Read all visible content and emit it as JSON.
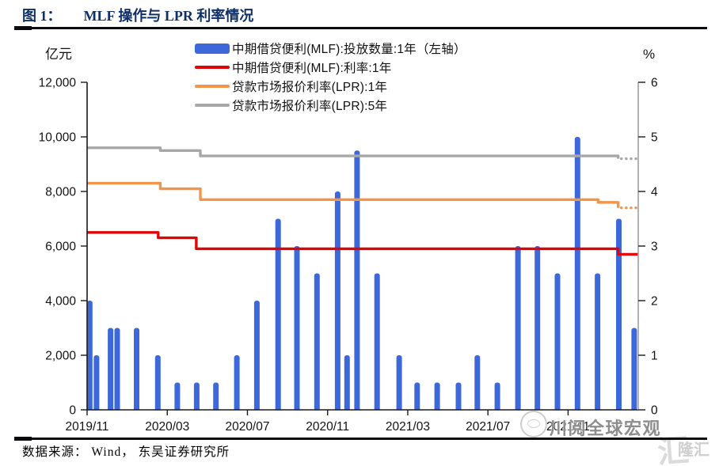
{
  "header": {
    "figure_label": "图 1：",
    "title": "MLF 操作与 LPR 利率情况"
  },
  "footer": {
    "source": "数据来源： Wind， 东吴证券研究所"
  },
  "watermark": {
    "logo": "speech-bubble-logo",
    "main_text": "川阅全球宏观",
    "corner_char": "汇",
    "corner_text": "隆汇"
  },
  "chart_data": {
    "type": "bar+line combo (dual axis)",
    "left_axis": {
      "label": "亿元",
      "min": 0,
      "max": 12000,
      "tick_step": 2000,
      "tick_labels": [
        "0",
        "2,000",
        "4,000",
        "6,000",
        "8,000",
        "10,000",
        "12,000"
      ]
    },
    "right_axis": {
      "label": "%",
      "min": 0,
      "max": 6,
      "tick_step": 1,
      "tick_labels": [
        "0",
        "1",
        "2",
        "3",
        "4",
        "5",
        "6"
      ]
    },
    "x_axis": {
      "domain_start": "2019/11",
      "domain_end": "2022/02",
      "domain_months": 27.5,
      "tick_month_positions": [
        0,
        4,
        8,
        12,
        16,
        20,
        24
      ],
      "tick_labels": [
        "2019/11",
        "2020/03",
        "2020/07",
        "2020/11",
        "2021/03",
        "2021/07",
        "2021/11"
      ]
    },
    "legend": [
      {
        "label": "中期借贷便利(MLF):投放数量:1年（左轴）",
        "color": "#3c68da",
        "type": "bar"
      },
      {
        "label": "中期借贷便利(MLF):利率:1年",
        "color": "#e00505",
        "type": "line"
      },
      {
        "label": "贷款市场报价利率(LPR):1年",
        "color": "#f2944a",
        "type": "line"
      },
      {
        "label": "贷款市场报价利率(LPR):5年",
        "color": "#a7a7a7",
        "type": "line"
      }
    ],
    "bars": {
      "name": "中期借贷便利(MLF):投放数量:1年（左轴）",
      "unit": "亿元",
      "color": "#3c68da",
      "points": [
        {
          "date": "2019/11/05",
          "m": 0.13,
          "value": 4000
        },
        {
          "date": "2019/11/15",
          "m": 0.47,
          "value": 2000
        },
        {
          "date": "2019/12/06",
          "m": 1.17,
          "value": 3000
        },
        {
          "date": "2019/12/16",
          "m": 1.5,
          "value": 3000
        },
        {
          "date": "2020/01/15",
          "m": 2.47,
          "value": 3000
        },
        {
          "date": "2020/02/17",
          "m": 3.53,
          "value": 2000
        },
        {
          "date": "2020/03/16",
          "m": 4.5,
          "value": 1000
        },
        {
          "date": "2020/04/15",
          "m": 5.47,
          "value": 1000
        },
        {
          "date": "2020/05/14",
          "m": 6.43,
          "value": 1000
        },
        {
          "date": "2020/06/15",
          "m": 7.47,
          "value": 2000
        },
        {
          "date": "2020/07/15",
          "m": 8.47,
          "value": 4000
        },
        {
          "date": "2020/08/17",
          "m": 9.53,
          "value": 7000
        },
        {
          "date": "2020/09/15",
          "m": 10.47,
          "value": 6000
        },
        {
          "date": "2020/10/15",
          "m": 11.47,
          "value": 5000
        },
        {
          "date": "2020/11/16",
          "m": 12.5,
          "value": 8000
        },
        {
          "date": "2020/11/30",
          "m": 12.97,
          "value": 2000
        },
        {
          "date": "2020/12/15",
          "m": 13.47,
          "value": 9500
        },
        {
          "date": "2021/01/15",
          "m": 14.47,
          "value": 5000
        },
        {
          "date": "2021/02/18",
          "m": 15.57,
          "value": 2000
        },
        {
          "date": "2021/03/15",
          "m": 16.47,
          "value": 1000
        },
        {
          "date": "2021/04/15",
          "m": 17.47,
          "value": 1000
        },
        {
          "date": "2021/05/17",
          "m": 18.53,
          "value": 1000
        },
        {
          "date": "2021/06/15",
          "m": 19.47,
          "value": 2000
        },
        {
          "date": "2021/07/15",
          "m": 20.47,
          "value": 1000
        },
        {
          "date": "2021/08/16",
          "m": 21.5,
          "value": 6000
        },
        {
          "date": "2021/09/15",
          "m": 22.47,
          "value": 6000
        },
        {
          "date": "2021/10/15",
          "m": 23.47,
          "value": 5000
        },
        {
          "date": "2021/11/15",
          "m": 24.47,
          "value": 10000
        },
        {
          "date": "2021/12/15",
          "m": 25.47,
          "value": 5000
        },
        {
          "date": "2022/01/17",
          "m": 26.53,
          "value": 7000
        },
        {
          "date": "2022/02/15",
          "m": 27.3,
          "value": 3000
        }
      ]
    },
    "lines": [
      {
        "name": "中期借贷便利(MLF):利率:1年",
        "color": "#e00505",
        "unit": "%",
        "points": [
          {
            "date": "2019/11/01",
            "m": 0,
            "value": 3.25
          },
          {
            "date": "2020/02/17",
            "m": 3.55,
            "value": 3.15
          },
          {
            "date": "2020/04/15",
            "m": 5.45,
            "value": 2.95
          },
          {
            "date": "2022/01/17",
            "m": 26.5,
            "value": 2.85
          }
        ],
        "dotted_from_m": null,
        "end_m": 27.5
      },
      {
        "name": "贷款市场报价利率(LPR):1年",
        "color": "#f2944a",
        "unit": "%",
        "points": [
          {
            "date": "2019/11/01",
            "m": 0,
            "value": 4.15
          },
          {
            "date": "2020/02/20",
            "m": 3.65,
            "value": 4.05
          },
          {
            "date": "2020/04/20",
            "m": 5.65,
            "value": 3.85
          },
          {
            "date": "2021/12/20",
            "m": 25.5,
            "value": 3.8
          },
          {
            "date": "2022/01/20",
            "m": 26.5,
            "value": 3.7
          }
        ],
        "dotted_from_m": 26.5,
        "end_m": 27.5
      },
      {
        "name": "贷款市场报价利率(LPR):5年",
        "color": "#a7a7a7",
        "unit": "%",
        "points": [
          {
            "date": "2019/11/01",
            "m": 0,
            "value": 4.8
          },
          {
            "date": "2020/02/20",
            "m": 3.65,
            "value": 4.75
          },
          {
            "date": "2020/04/20",
            "m": 5.65,
            "value": 4.65
          },
          {
            "date": "2022/01/20",
            "m": 26.5,
            "value": 4.6
          }
        ],
        "dotted_from_m": 26.5,
        "end_m": 27.5
      }
    ],
    "colors": {
      "bar_blue": "#3c68da",
      "mlf_rate_red": "#e00505",
      "lpr1y_orange": "#f2944a",
      "lpr5y_gray": "#a7a7a7",
      "title_navy": "#0f2f66",
      "axis_black": "#1a1a1a",
      "right_axis_gray": "#a0a0a0"
    }
  }
}
